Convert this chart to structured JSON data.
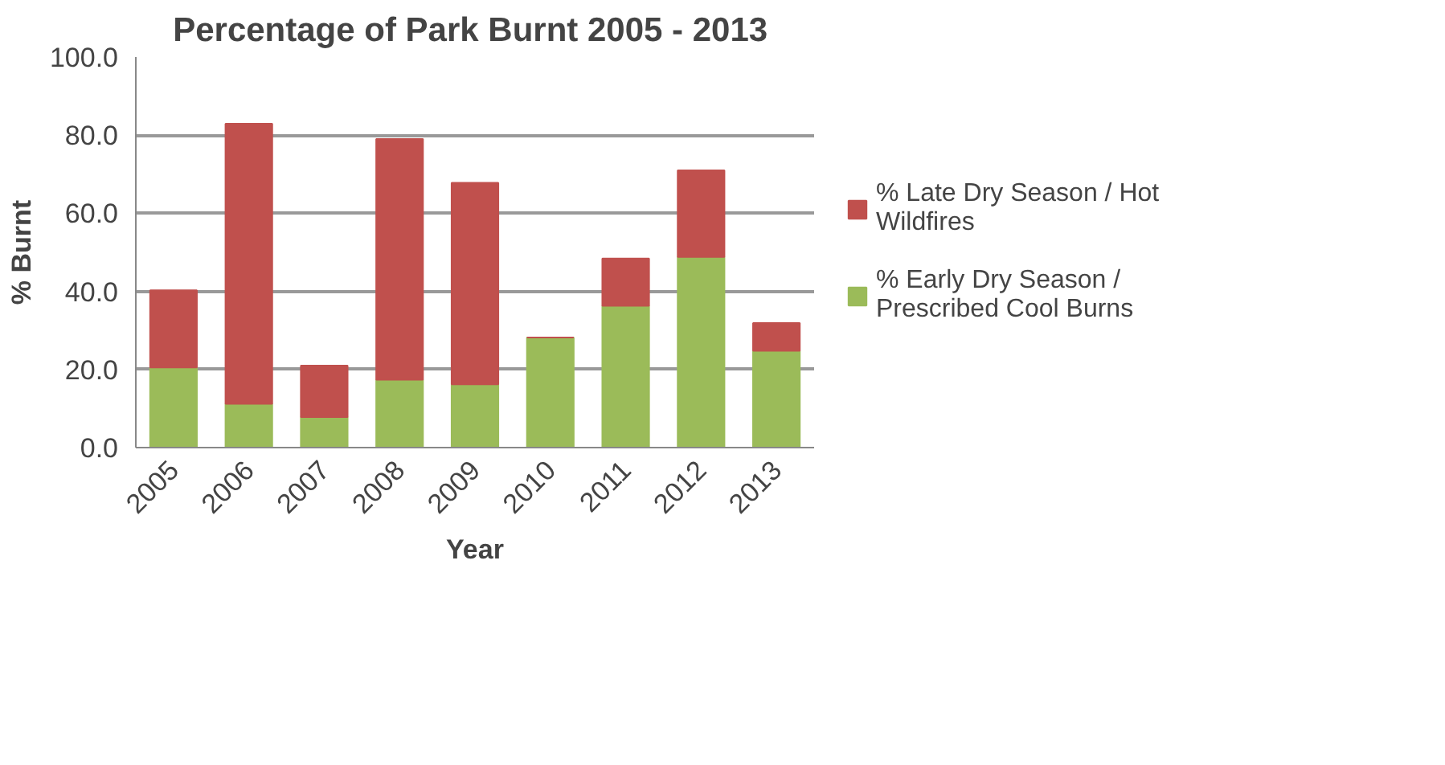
{
  "chart_data": {
    "type": "bar",
    "stacked": true,
    "title": "Percentage of Park Burnt  2005 - 2013",
    "xlabel": "Year",
    "ylabel": "% Burnt",
    "categories": [
      "2005",
      "2006",
      "2007",
      "2008",
      "2009",
      "2010",
      "2011",
      "2012",
      "2013"
    ],
    "series": [
      {
        "name": "% Early Dry Season / Prescribed Cool Burns",
        "color": "#9bbb59",
        "values": [
          20.5,
          11.2,
          7.8,
          17.4,
          16.2,
          28.2,
          36.3,
          48.8,
          24.8
        ]
      },
      {
        "name": "% Late Dry Season / Hot Wildfires",
        "color": "#c0504d",
        "values": [
          19.8,
          71.7,
          13.2,
          61.6,
          51.6,
          0,
          12.1,
          22.2,
          7.1
        ]
      }
    ],
    "ylim": [
      0,
      100
    ],
    "yticks": [
      {
        "value": 0,
        "label": "0.0"
      },
      {
        "value": 20,
        "label": "20.0"
      },
      {
        "value": 40,
        "label": "40.0"
      },
      {
        "value": 60,
        "label": "60.0"
      },
      {
        "value": 80,
        "label": "80.0"
      },
      {
        "value": 100,
        "label": "100.0"
      }
    ],
    "grid": "y",
    "legend": "right"
  }
}
